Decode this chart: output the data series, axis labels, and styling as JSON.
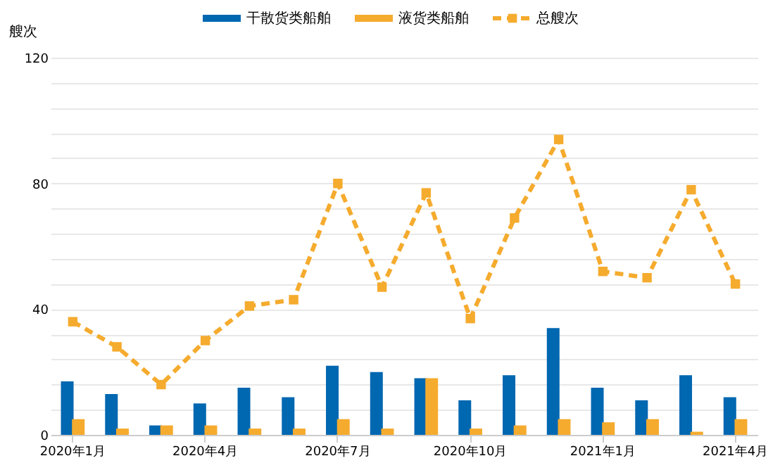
{
  "chart_data": {
    "type": "bar",
    "ylabel": "艘次",
    "categories": [
      "2020年1月",
      null,
      null,
      "2020年4月",
      null,
      null,
      "2020年7月",
      null,
      null,
      "2020年10月",
      null,
      null,
      "2021年1月",
      null,
      null,
      "2021年4月"
    ],
    "series": [
      {
        "name": "干散货类船舶",
        "type": "bar",
        "color": "#0067b1",
        "values": [
          17,
          13,
          3,
          10,
          15,
          12,
          22,
          20,
          18,
          11,
          19,
          34,
          15,
          11,
          19,
          12
        ]
      },
      {
        "name": "液货类船舶",
        "type": "bar",
        "color": "#f5ab2e",
        "values": [
          5,
          2,
          3,
          3,
          2,
          2,
          5,
          2,
          18,
          2,
          3,
          5,
          4,
          5,
          1,
          5
        ]
      },
      {
        "name": "总艘次",
        "type": "line",
        "color": "#f5ab2e",
        "values": [
          36,
          28,
          16,
          30,
          41,
          43,
          80,
          47,
          77,
          37,
          69,
          94,
          52,
          50,
          78,
          48
        ]
      }
    ],
    "ylim": [
      0,
      120
    ],
    "yticks": [
      0,
      {
        "value": 8,
        "label": null
      },
      {
        "value": 16,
        "label": null
      },
      {
        "value": 24,
        "label": null
      },
      {
        "value": 32,
        "label": null
      },
      40,
      {
        "value": 48,
        "label": null
      },
      {
        "value": 56,
        "label": null
      },
      {
        "value": 64,
        "label": null
      },
      {
        "value": 72,
        "label": null
      },
      80,
      {
        "value": 88,
        "label": null
      },
      {
        "value": 96,
        "label": null
      },
      {
        "value": 104,
        "label": null
      },
      {
        "value": 112,
        "label": null
      },
      120
    ],
    "grid": "y",
    "legend": "top",
    "marker": "square",
    "line_style": "dashed"
  }
}
